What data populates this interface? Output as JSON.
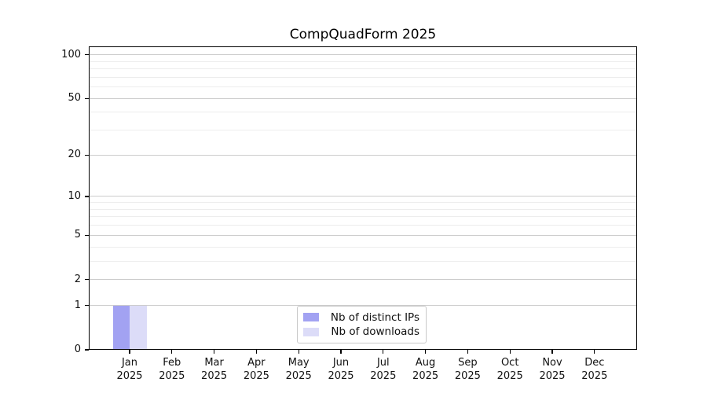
{
  "title": "CompQuadForm 2025",
  "colors": {
    "distinct_ips": "#a2a2f2",
    "downloads": "#dcdcf8",
    "grid_major": "#cccccc",
    "grid_minor": "#ededed",
    "axis": "#000000",
    "legend_border": "#c9c9c9",
    "background": "#ffffff"
  },
  "legend": {
    "position": "lower center",
    "items": [
      {
        "label": "Nb of distinct IPs",
        "color_key": "distinct_ips"
      },
      {
        "label": "Nb of downloads",
        "color_key": "downloads"
      }
    ]
  },
  "chart_data": {
    "type": "bar",
    "title": "CompQuadForm 2025",
    "categories": [
      "Jan 2025",
      "Feb 2025",
      "Mar 2025",
      "Apr 2025",
      "May 2025",
      "Jun 2025",
      "Jul 2025",
      "Aug 2025",
      "Sep 2025",
      "Oct 2025",
      "Nov 2025",
      "Dec 2025"
    ],
    "series": [
      {
        "name": "Nb of distinct IPs",
        "values": [
          1,
          0,
          0,
          0,
          0,
          0,
          0,
          0,
          0,
          0,
          0,
          0
        ]
      },
      {
        "name": "Nb of downloads",
        "values": [
          1,
          0,
          0,
          0,
          0,
          0,
          0,
          0,
          0,
          0,
          0,
          0
        ]
      }
    ],
    "xlabel": "",
    "ylabel": "",
    "y_scale": "log1p",
    "y_ticks_major": [
      0,
      1,
      2,
      5,
      10,
      20,
      50,
      100
    ],
    "y_ticks_minor": [
      3,
      4,
      6,
      7,
      8,
      9,
      30,
      40,
      60,
      70,
      80,
      90
    ],
    "ylim": [
      0,
      114
    ],
    "grid": "horizontal",
    "legend_position": "lower center"
  }
}
